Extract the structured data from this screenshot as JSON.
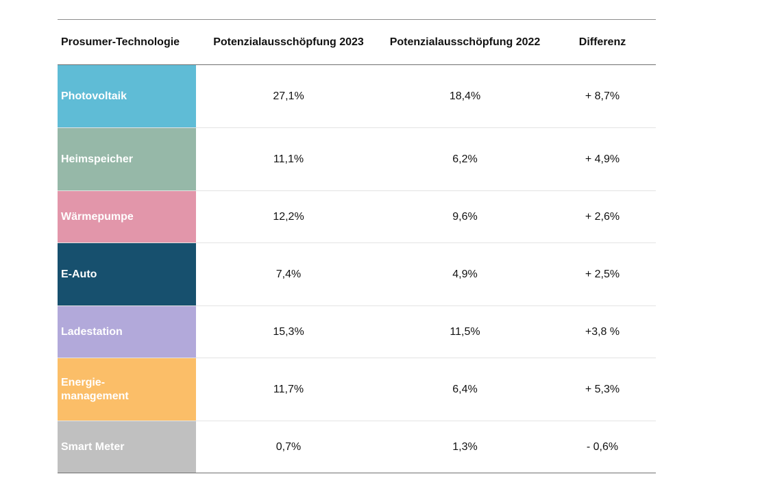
{
  "chart_data": {
    "type": "table",
    "columns": [
      "Prosumer-Technologie",
      "Potenzialausschöpfung 2023",
      "Potenzialausschöpfung 2022",
      "Differenz"
    ],
    "rows": [
      {
        "technology": "Photovoltaik",
        "v2023": "27,1%",
        "v2022": "18,4%",
        "diff": "+ 8,7%",
        "color": "#5fbcd6"
      },
      {
        "technology": "Heimspeicher",
        "v2023": "11,1%",
        "v2022": "6,2%",
        "diff": "+ 4,9%",
        "color": "#96b8a8"
      },
      {
        "technology": "Wärmepumpe",
        "v2023": "12,2%",
        "v2022": "9,6%",
        "diff": "+ 2,6%",
        "color": "#e296aa"
      },
      {
        "technology": "E-Auto",
        "v2023": "7,4%",
        "v2022": "4,9%",
        "diff": "+ 2,5%",
        "color": "#17506e"
      },
      {
        "technology": "Ladestation",
        "v2023": "15,3%",
        "v2022": "11,5%",
        "diff": "+3,8 %",
        "color": "#b2a9da"
      },
      {
        "technology": "Energie-\nmanagement",
        "v2023": "11,7%",
        "v2022": "6,4%",
        "diff": "+ 5,3%",
        "color": "#fbbe68"
      },
      {
        "technology": "Smart Meter",
        "v2023": "0,7%",
        "v2022": "1,3%",
        "diff": "- 0,6%",
        "color": "#c0c0c0"
      }
    ]
  }
}
